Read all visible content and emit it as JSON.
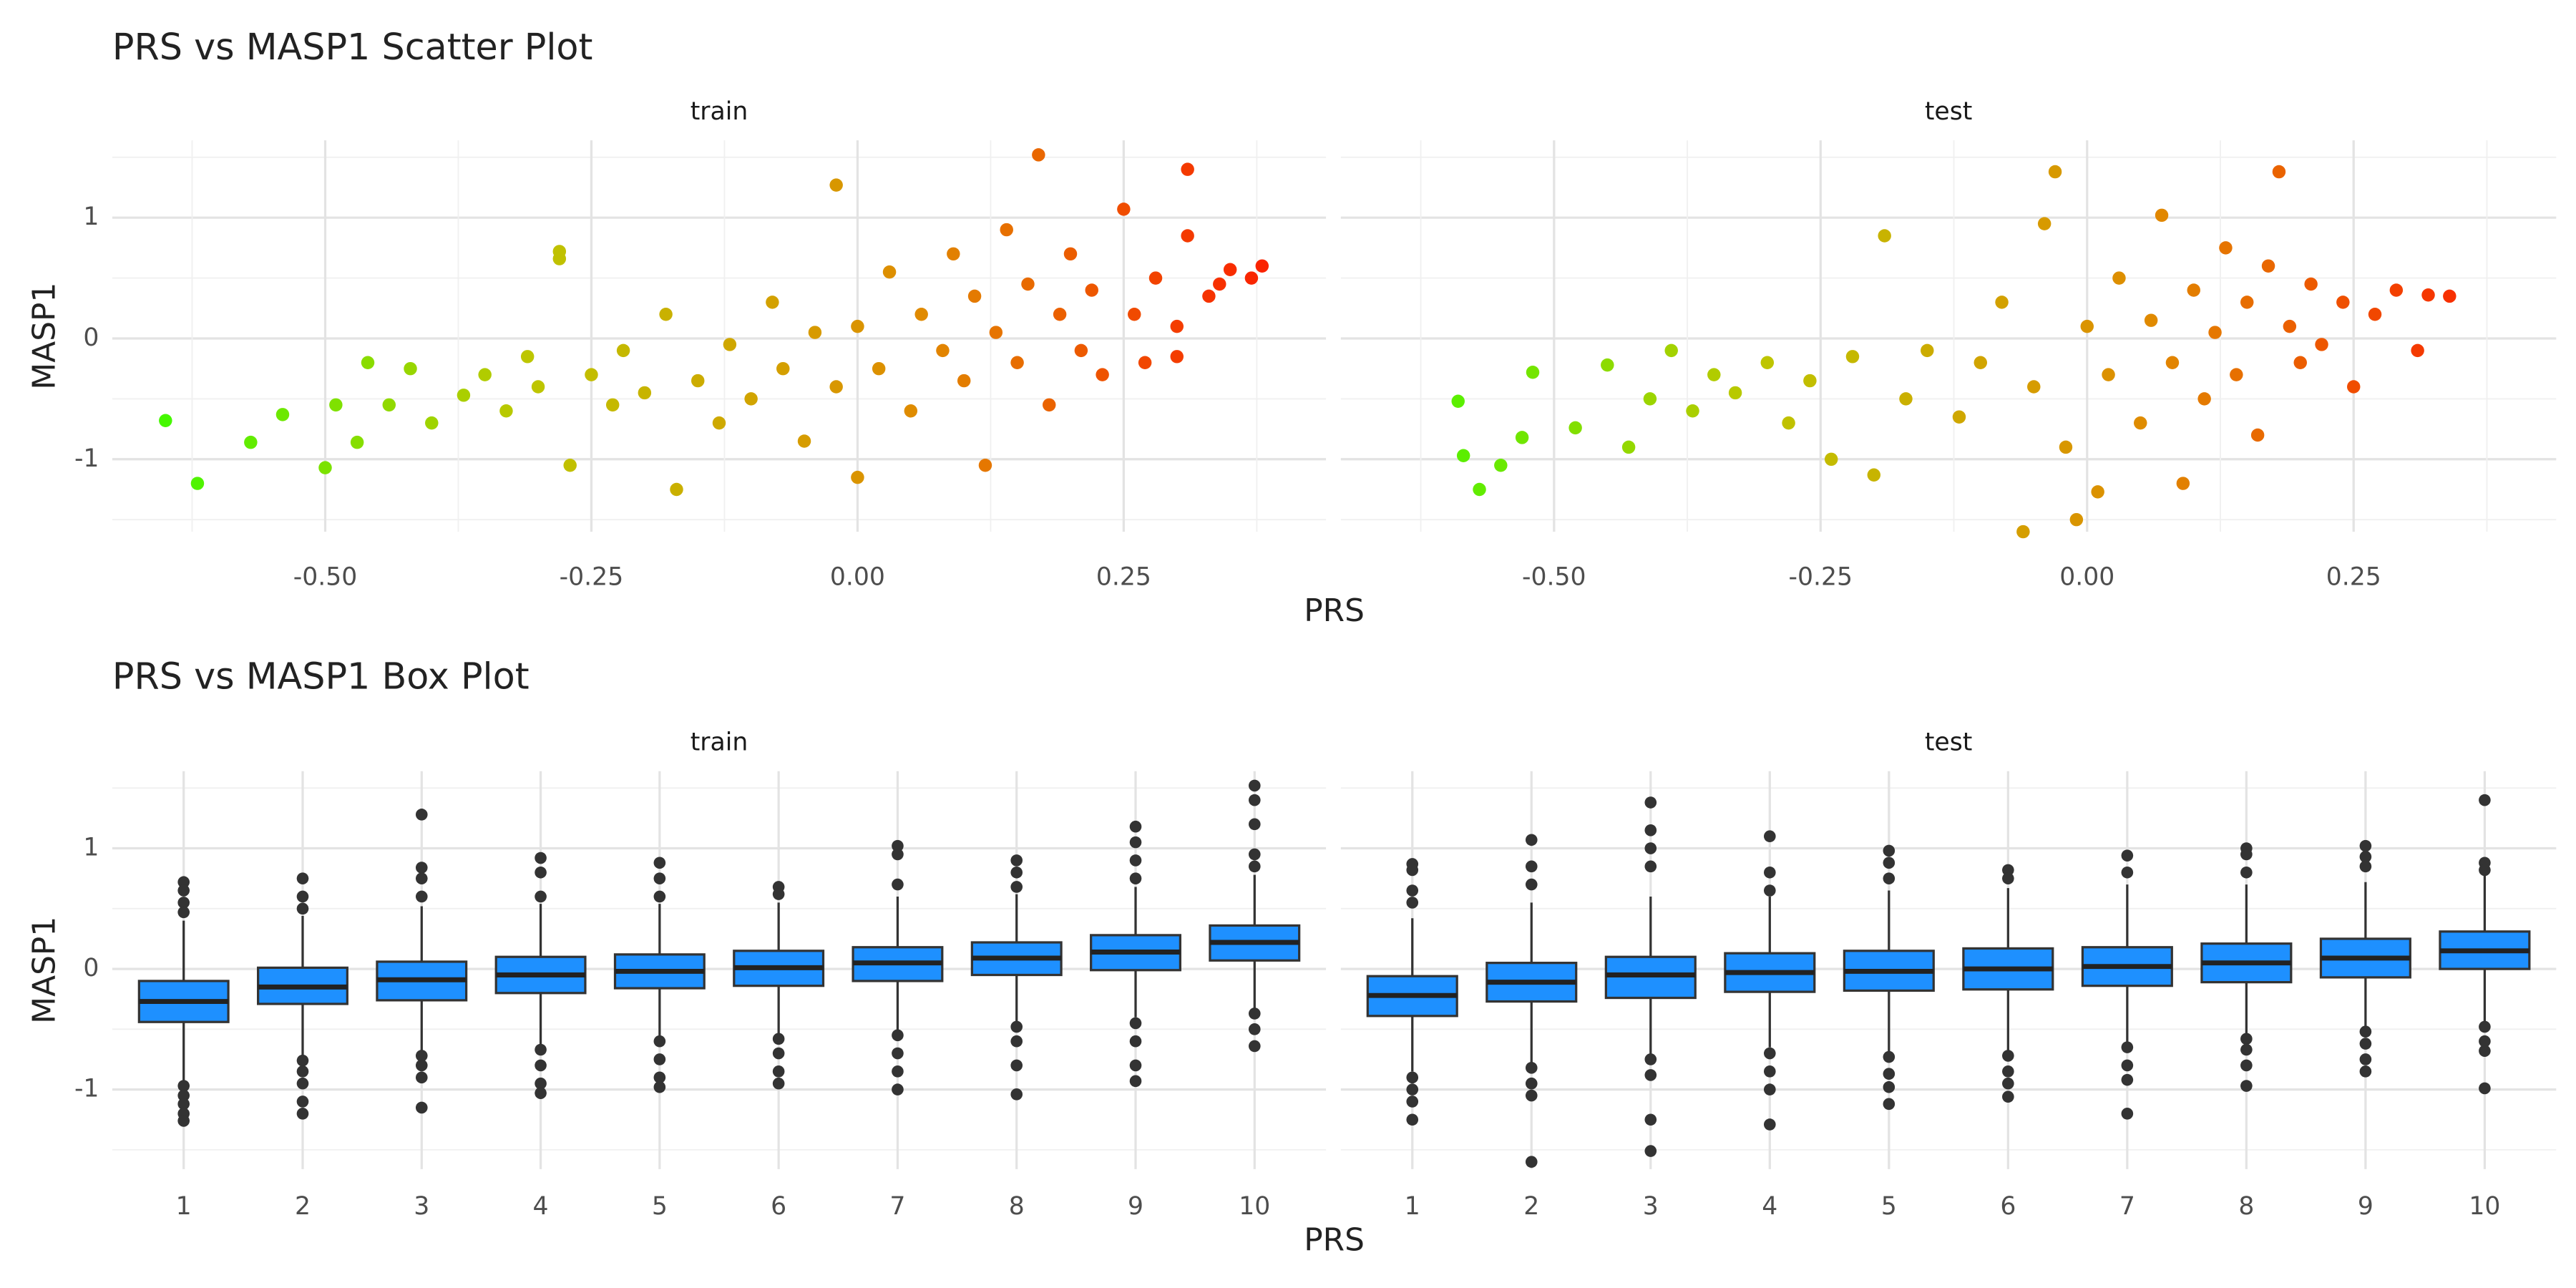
{
  "chart_data": [
    {
      "type": "scatter",
      "title": "PRS vs MASP1 Scatter Plot",
      "x_label": "PRS",
      "y_label": "MASP1",
      "xlim": [
        -0.7,
        0.44
      ],
      "ylim": [
        -1.6,
        1.64
      ],
      "xticks": [
        {
          "value": -0.5,
          "label": "-0.50"
        },
        {
          "value": -0.25,
          "label": "-0.25"
        },
        {
          "value": 0,
          "label": "0.00"
        },
        {
          "value": 0.25,
          "label": "0.25"
        }
      ],
      "xminor": [
        -0.625,
        -0.375,
        -0.125,
        0.125,
        0.375
      ],
      "yticks": [
        -1,
        0,
        1
      ],
      "yminor": [
        -1.5,
        -0.5,
        0.5,
        1.5
      ],
      "grid": true,
      "color_scale": [
        "#33ff00",
        "#bcc800",
        "#e08a00",
        "#ff1000"
      ],
      "facets": [
        {
          "name": "train",
          "x": [
            -0.65,
            -0.62,
            -0.57,
            -0.54,
            -0.5,
            -0.49,
            -0.47,
            -0.46,
            -0.44,
            -0.42,
            -0.4,
            -0.37,
            -0.35,
            -0.33,
            -0.31,
            -0.3,
            -0.28,
            -0.28,
            -0.27,
            -0.25,
            -0.23,
            -0.22,
            -0.2,
            -0.18,
            -0.17,
            -0.15,
            -0.13,
            -0.12,
            -0.1,
            -0.08,
            -0.07,
            -0.05,
            -0.04,
            -0.02,
            -0.02,
            0,
            0,
            0.02,
            0.03,
            0.05,
            0.06,
            0.08,
            0.09,
            0.1,
            0.11,
            0.12,
            0.13,
            0.14,
            0.15,
            0.16,
            0.17,
            0.18,
            0.19,
            0.2,
            0.21,
            0.22,
            0.23,
            0.25,
            0.26,
            0.27,
            0.28,
            0.3,
            0.31,
            0.33,
            0.34,
            0.35,
            0.37,
            0.38,
            0.31,
            0.3
          ],
          "values": [
            -0.68,
            -1.2,
            -0.86,
            -0.63,
            -1.07,
            -0.55,
            -0.86,
            -0.2,
            -0.55,
            -0.25,
            -0.7,
            -0.47,
            -0.3,
            -0.6,
            -0.15,
            -0.4,
            0.72,
            0.66,
            -1.05,
            -0.3,
            -0.55,
            -0.1,
            -0.45,
            0.2,
            -1.25,
            -0.35,
            -0.7,
            -0.05,
            -0.5,
            0.3,
            -0.25,
            -0.85,
            0.05,
            1.27,
            -0.4,
            -1.15,
            0.1,
            -0.25,
            0.55,
            -0.6,
            0.2,
            -0.1,
            0.7,
            -0.35,
            0.35,
            -1.05,
            0.05,
            0.9,
            -0.2,
            0.45,
            1.52,
            -0.55,
            0.2,
            0.7,
            -0.1,
            0.4,
            -0.3,
            1.07,
            0.2,
            -0.2,
            0.5,
            0.1,
            0.85,
            0.35,
            0.45,
            0.57,
            0.5,
            0.6,
            1.4,
            -0.15
          ]
        },
        {
          "name": "test",
          "x": [
            -0.59,
            -0.585,
            -0.57,
            -0.55,
            -0.53,
            -0.52,
            -0.48,
            -0.45,
            -0.43,
            -0.41,
            -0.39,
            -0.37,
            -0.35,
            -0.33,
            -0.3,
            -0.28,
            -0.26,
            -0.24,
            -0.22,
            -0.2,
            -0.19,
            -0.17,
            -0.15,
            -0.12,
            -0.1,
            -0.08,
            -0.06,
            -0.05,
            -0.04,
            -0.03,
            -0.02,
            -0.01,
            0,
            0.01,
            0.02,
            0.03,
            0.05,
            0.06,
            0.07,
            0.08,
            0.09,
            0.1,
            0.11,
            0.12,
            0.13,
            0.14,
            0.15,
            0.16,
            0.17,
            0.18,
            0.19,
            0.2,
            0.21,
            0.22,
            0.24,
            0.25,
            0.27,
            0.29,
            0.31,
            0.32,
            0.34
          ],
          "values": [
            -0.52,
            -0.97,
            -1.25,
            -1.05,
            -0.82,
            -0.28,
            -0.74,
            -0.22,
            -0.9,
            -0.5,
            -0.1,
            -0.6,
            -0.3,
            -0.45,
            -0.2,
            -0.7,
            -0.35,
            -1.0,
            -0.15,
            -1.13,
            0.85,
            -0.5,
            -0.1,
            -0.65,
            -0.2,
            0.3,
            -1.6,
            -0.4,
            0.95,
            1.38,
            -0.9,
            -1.5,
            0.1,
            -1.27,
            -0.3,
            0.5,
            -0.7,
            0.15,
            1.02,
            -0.2,
            -1.2,
            0.4,
            -0.5,
            0.05,
            0.75,
            -0.3,
            0.3,
            -0.8,
            0.6,
            1.38,
            0.1,
            -0.2,
            0.45,
            -0.05,
            0.3,
            -0.4,
            0.2,
            0.4,
            -0.1,
            0.36,
            0.35
          ]
        }
      ]
    },
    {
      "type": "box",
      "title": "PRS vs MASP1 Box Plot",
      "x_label": "PRS",
      "y_label": "MASP1",
      "categories": [
        "1",
        "2",
        "3",
        "4",
        "5",
        "6",
        "7",
        "8",
        "9",
        "10"
      ],
      "ylim": [
        -1.66,
        1.64
      ],
      "yticks": [
        -1,
        0,
        1
      ],
      "yminor": [
        -1.5,
        -0.5,
        0.5,
        1.5
      ],
      "grid": true,
      "color": "#1e90ff",
      "facets": [
        {
          "name": "train",
          "min": [
            -0.93,
            -0.72,
            -0.7,
            -0.64,
            -0.58,
            -0.55,
            -0.52,
            -0.44,
            -0.4,
            -0.34
          ],
          "q1": [
            -0.44,
            -0.29,
            -0.26,
            -0.2,
            -0.16,
            -0.14,
            -0.1,
            -0.05,
            -0.01,
            0.07
          ],
          "median": [
            -0.27,
            -0.15,
            -0.09,
            -0.05,
            -0.02,
            0.01,
            0.05,
            0.09,
            0.14,
            0.22
          ],
          "q3": [
            -0.1,
            0.01,
            0.06,
            0.1,
            0.12,
            0.15,
            0.18,
            0.22,
            0.28,
            0.36
          ],
          "max": [
            0.4,
            0.44,
            0.52,
            0.54,
            0.54,
            0.55,
            0.6,
            0.62,
            0.68,
            0.78
          ],
          "outliers": [
            [
              0.72,
              0.65,
              0.55,
              0.47,
              -0.97,
              -1.05,
              -1.12,
              -1.2,
              -1.26
            ],
            [
              0.75,
              0.6,
              0.5,
              -0.76,
              -0.85,
              -0.95,
              -1.1,
              -1.2
            ],
            [
              1.28,
              0.84,
              0.75,
              0.6,
              -0.72,
              -0.8,
              -0.9,
              -1.15
            ],
            [
              0.92,
              0.8,
              0.6,
              -0.67,
              -0.8,
              -0.95,
              -1.03
            ],
            [
              0.88,
              0.75,
              0.6,
              -0.6,
              -0.75,
              -0.9,
              -0.98
            ],
            [
              0.68,
              0.62,
              -0.58,
              -0.7,
              -0.85,
              -0.95
            ],
            [
              1.02,
              0.95,
              0.7,
              -0.55,
              -0.7,
              -0.85,
              -1.0
            ],
            [
              0.9,
              0.8,
              0.68,
              -0.48,
              -0.6,
              -0.8,
              -1.04
            ],
            [
              1.18,
              1.05,
              0.9,
              0.75,
              -0.45,
              -0.6,
              -0.8,
              -0.93
            ],
            [
              1.52,
              1.4,
              1.2,
              0.95,
              0.85,
              -0.37,
              -0.5,
              -0.64
            ]
          ]
        },
        {
          "name": "test",
          "min": [
            -0.85,
            -0.78,
            -0.72,
            -0.65,
            -0.7,
            -0.68,
            -0.62,
            -0.55,
            -0.5,
            -0.45
          ],
          "q1": [
            -0.39,
            -0.27,
            -0.24,
            -0.19,
            -0.18,
            -0.17,
            -0.14,
            -0.11,
            -0.07,
            0.0
          ],
          "median": [
            -0.22,
            -0.11,
            -0.05,
            -0.03,
            -0.02,
            0.0,
            0.02,
            0.05,
            0.09,
            0.15
          ],
          "q3": [
            -0.06,
            0.05,
            0.1,
            0.13,
            0.15,
            0.17,
            0.18,
            0.21,
            0.25,
            0.31
          ],
          "max": [
            0.42,
            0.55,
            0.6,
            0.6,
            0.65,
            0.67,
            0.7,
            0.7,
            0.72,
            0.82
          ],
          "outliers": [
            [
              0.87,
              0.82,
              0.65,
              0.55,
              -0.9,
              -1.0,
              -1.1,
              -1.25
            ],
            [
              1.07,
              0.85,
              0.7,
              -0.82,
              -0.95,
              -1.05,
              -1.6
            ],
            [
              1.38,
              1.15,
              1.0,
              0.85,
              -0.75,
              -0.88,
              -1.25,
              -1.51
            ],
            [
              1.1,
              0.8,
              0.65,
              -0.7,
              -0.85,
              -1.0,
              -1.29
            ],
            [
              0.98,
              0.88,
              0.75,
              -0.73,
              -0.87,
              -0.98,
              -1.12
            ],
            [
              0.82,
              0.75,
              -0.72,
              -0.85,
              -0.95,
              -1.06
            ],
            [
              0.94,
              0.8,
              -0.65,
              -0.8,
              -0.92,
              -1.2
            ],
            [
              1.0,
              0.95,
              0.8,
              -0.58,
              -0.67,
              -0.8,
              -0.97
            ],
            [
              1.02,
              0.93,
              0.85,
              -0.52,
              -0.62,
              -0.75,
              -0.85
            ],
            [
              1.4,
              0.88,
              0.82,
              -0.48,
              -0.6,
              -0.68,
              -0.99
            ]
          ]
        }
      ]
    }
  ]
}
